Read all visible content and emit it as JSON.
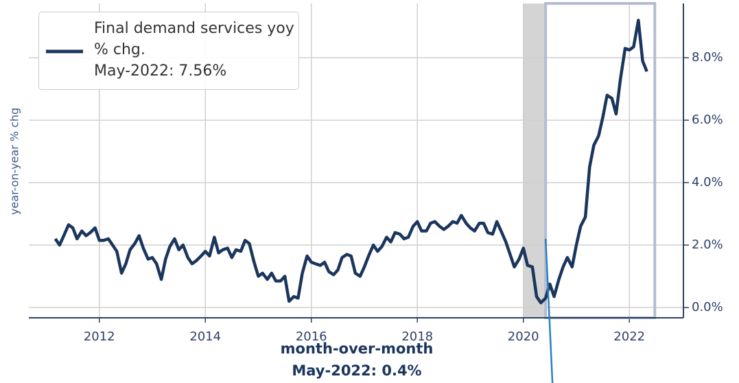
{
  "chart_data": {
    "type": "line",
    "y_label": "year-on-year % chg",
    "series": [
      {
        "name": "Final demand services yoy % chg.",
        "color": "#1b365d",
        "note": "May-2022: 7.56%",
        "x": [
          2011.17,
          2011.25,
          2011.33,
          2011.42,
          2011.5,
          2011.58,
          2011.67,
          2011.75,
          2011.83,
          2011.92,
          2012.0,
          2012.08,
          2012.17,
          2012.25,
          2012.33,
          2012.42,
          2012.5,
          2012.58,
          2012.67,
          2012.75,
          2012.83,
          2012.92,
          2013.0,
          2013.08,
          2013.17,
          2013.25,
          2013.33,
          2013.42,
          2013.5,
          2013.58,
          2013.67,
          2013.75,
          2013.83,
          2013.92,
          2014.0,
          2014.08,
          2014.17,
          2014.25,
          2014.33,
          2014.42,
          2014.5,
          2014.58,
          2014.67,
          2014.75,
          2014.83,
          2014.92,
          2015.0,
          2015.08,
          2015.17,
          2015.25,
          2015.33,
          2015.42,
          2015.5,
          2015.58,
          2015.67,
          2015.75,
          2015.83,
          2015.92,
          2016.0,
          2016.08,
          2016.17,
          2016.25,
          2016.33,
          2016.42,
          2016.5,
          2016.58,
          2016.67,
          2016.75,
          2016.83,
          2016.92,
          2017.0,
          2017.08,
          2017.17,
          2017.25,
          2017.33,
          2017.42,
          2017.5,
          2017.58,
          2017.67,
          2017.75,
          2017.83,
          2017.92,
          2018.0,
          2018.08,
          2018.17,
          2018.25,
          2018.33,
          2018.42,
          2018.5,
          2018.58,
          2018.67,
          2018.75,
          2018.83,
          2018.92,
          2019.0,
          2019.08,
          2019.17,
          2019.25,
          2019.33,
          2019.42,
          2019.5,
          2019.58,
          2019.67,
          2019.75,
          2019.83,
          2019.92,
          2020.0,
          2020.08,
          2020.17,
          2020.25,
          2020.33,
          2020.42,
          2020.5,
          2020.58,
          2020.67,
          2020.75,
          2020.83,
          2020.92,
          2021.0,
          2021.08,
          2021.17,
          2021.25,
          2021.33,
          2021.42,
          2021.5,
          2021.58,
          2021.67,
          2021.75,
          2021.83,
          2021.92,
          2022.0,
          2022.08,
          2022.17,
          2022.25,
          2022.33
        ],
        "values": [
          2.2,
          2.0,
          2.3,
          2.65,
          2.55,
          2.2,
          2.45,
          2.3,
          2.4,
          2.55,
          2.15,
          2.15,
          2.2,
          2.0,
          1.8,
          1.1,
          1.4,
          1.85,
          2.05,
          2.3,
          1.9,
          1.55,
          1.6,
          1.4,
          0.9,
          1.55,
          1.95,
          2.2,
          1.85,
          2.0,
          1.6,
          1.4,
          1.5,
          1.65,
          1.8,
          1.65,
          2.25,
          1.75,
          1.85,
          1.9,
          1.6,
          1.85,
          1.8,
          2.15,
          2.05,
          1.45,
          1.0,
          1.1,
          0.9,
          1.1,
          0.85,
          0.85,
          1.0,
          0.2,
          0.35,
          0.3,
          1.1,
          1.65,
          1.45,
          1.4,
          1.35,
          1.45,
          1.15,
          1.05,
          1.2,
          1.6,
          1.7,
          1.65,
          1.1,
          1.0,
          1.3,
          1.65,
          2.0,
          1.8,
          1.95,
          2.25,
          2.1,
          2.4,
          2.35,
          2.2,
          2.25,
          2.6,
          2.75,
          2.45,
          2.45,
          2.7,
          2.75,
          2.6,
          2.5,
          2.6,
          2.75,
          2.7,
          2.95,
          2.7,
          2.55,
          2.45,
          2.7,
          2.7,
          2.4,
          2.35,
          2.75,
          2.45,
          2.1,
          1.7,
          1.3,
          1.55,
          1.9,
          1.35,
          1.3,
          0.35,
          0.15,
          0.3,
          0.75,
          0.35,
          0.9,
          1.3,
          1.6,
          1.3,
          2.0,
          2.6,
          2.9,
          4.5,
          5.2,
          5.5,
          6.1,
          6.8,
          6.7,
          6.2,
          7.3,
          8.3,
          8.25,
          8.35,
          9.2,
          7.9,
          7.56
        ]
      }
    ],
    "recession": [
      2020.0,
      2020.42
    ],
    "highlight": [
      2020.42,
      2022.48
    ],
    "annotation": {
      "title": "month-over-month",
      "text": "May-2022: 0.4%"
    },
    "xlim": [
      2010.67,
      2023.02
    ],
    "xticks": [
      2012,
      2014,
      2016,
      2018,
      2020,
      2022
    ],
    "ylim": [
      -0.33,
      9.74
    ],
    "yticks": [
      {
        "value": 0,
        "label": "0.0%"
      },
      {
        "value": 2,
        "label": "2.0%"
      },
      {
        "value": 4,
        "label": "4.0%"
      },
      {
        "value": 6,
        "label": "6.0%"
      },
      {
        "value": 8,
        "label": "8.0%"
      }
    ],
    "grid": true,
    "legend": "upper left"
  }
}
